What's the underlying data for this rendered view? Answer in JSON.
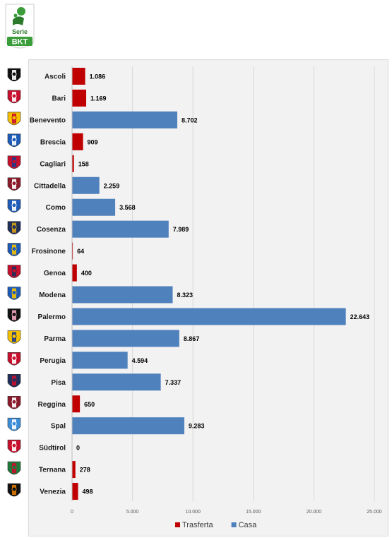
{
  "logo": {
    "word": "Serie",
    "brand": "BKT"
  },
  "colors": {
    "trasferta": "#c00000",
    "casa": "#4f81bd",
    "grid": "#d9d9d9",
    "panel": "#f2f2f2"
  },
  "chart_data": {
    "type": "bar",
    "orientation": "horizontal",
    "categories": [
      "Ascoli",
      "Bari",
      "Benevento",
      "Brescia",
      "Cagliari",
      "Cittadella",
      "Como",
      "Cosenza",
      "Frosinone",
      "Genoa",
      "Modena",
      "Palermo",
      "Parma",
      "Perugia",
      "Pisa",
      "Reggina",
      "Spal",
      "Südtirol",
      "Ternana",
      "Venezia"
    ],
    "values": [
      1086,
      1169,
      8702,
      909,
      158,
      2259,
      3568,
      7989,
      64,
      400,
      8323,
      22643,
      8867,
      4594,
      7337,
      650,
      9283,
      0,
      278,
      498
    ],
    "value_labels": [
      "1.086",
      "1.169",
      "8.702",
      "909",
      "158",
      "2.259",
      "3.568",
      "7.989",
      "64",
      "400",
      "8.323",
      "22.643",
      "8.867",
      "4.594",
      "7.337",
      "650",
      "9.283",
      "0",
      "278",
      "498"
    ],
    "series_membership": [
      "Trasferta",
      "Trasferta",
      "Casa",
      "Trasferta",
      "Trasferta",
      "Casa",
      "Casa",
      "Casa",
      "Trasferta",
      "Trasferta",
      "Casa",
      "Casa",
      "Casa",
      "Casa",
      "Casa",
      "Trasferta",
      "Casa",
      "Trasferta",
      "Trasferta",
      "Trasferta"
    ],
    "series": [
      {
        "name": "Trasferta",
        "color": "#c00000"
      },
      {
        "name": "Casa",
        "color": "#4f81bd"
      }
    ],
    "xlim": [
      0,
      25000
    ],
    "xticks": [
      0,
      5000,
      10000,
      15000,
      20000,
      25000
    ],
    "xtick_labels": [
      "0",
      "5.000",
      "10.000",
      "15.000",
      "20.000",
      "25.000"
    ],
    "grid": true,
    "legend_position": "bottom"
  },
  "crests": [
    {
      "name": "ascoli-crest-icon",
      "c1": "#111111",
      "c2": "#ffffff"
    },
    {
      "name": "bari-crest-icon",
      "c1": "#c8102e",
      "c2": "#ffffff"
    },
    {
      "name": "benevento-crest-icon",
      "c1": "#f6c100",
      "c2": "#c8102e"
    },
    {
      "name": "brescia-crest-icon",
      "c1": "#1e5bb8",
      "c2": "#ffffff"
    },
    {
      "name": "cagliari-crest-icon",
      "c1": "#c8102e",
      "c2": "#1e3a8a"
    },
    {
      "name": "cittadella-crest-icon",
      "c1": "#8b1a2b",
      "c2": "#ffffff"
    },
    {
      "name": "como-crest-icon",
      "c1": "#1e5bb8",
      "c2": "#ffffff"
    },
    {
      "name": "cosenza-crest-icon",
      "c1": "#1f2f5a",
      "c2": "#d4a017"
    },
    {
      "name": "frosinone-crest-icon",
      "c1": "#1e5bb8",
      "c2": "#f6c100"
    },
    {
      "name": "genoa-crest-icon",
      "c1": "#c8102e",
      "c2": "#1f2f5a"
    },
    {
      "name": "modena-crest-icon",
      "c1": "#1e5bb8",
      "c2": "#f6c100"
    },
    {
      "name": "palermo-crest-icon",
      "c1": "#111111",
      "c2": "#f4a6c0"
    },
    {
      "name": "parma-crest-icon",
      "c1": "#f6c100",
      "c2": "#1e3a8a"
    },
    {
      "name": "perugia-crest-icon",
      "c1": "#c8102e",
      "c2": "#ffffff"
    },
    {
      "name": "pisa-crest-icon",
      "c1": "#1f2f5a",
      "c2": "#c8102e"
    },
    {
      "name": "reggina-crest-icon",
      "c1": "#8b1a2b",
      "c2": "#ffffff"
    },
    {
      "name": "spal-crest-icon",
      "c1": "#3d8ed8",
      "c2": "#ffffff"
    },
    {
      "name": "sudtirol-crest-icon",
      "c1": "#c8102e",
      "c2": "#ffffff"
    },
    {
      "name": "ternana-crest-icon",
      "c1": "#1f7a3a",
      "c2": "#c8102e"
    },
    {
      "name": "venezia-crest-icon",
      "c1": "#111111",
      "c2": "#e07b00"
    }
  ]
}
